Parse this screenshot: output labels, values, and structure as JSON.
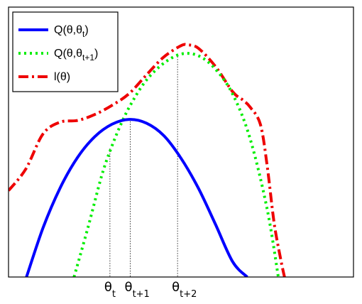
{
  "chart_data": {
    "type": "line",
    "title": "",
    "xlabel": "",
    "ylabel": "",
    "xlim": [
      0,
      1
    ],
    "ylim": [
      0,
      1
    ],
    "grid": false,
    "legend_position": "top-left",
    "series": [
      {
        "name_main": "Q(θ,θ",
        "name_sub": "t",
        "name_tail": ")",
        "color": "#0000ff",
        "style": "solid",
        "x": [
          0.052,
          0.1,
          0.15,
          0.2,
          0.25,
          0.3,
          0.35,
          0.4,
          0.45,
          0.5,
          0.55,
          0.6,
          0.65,
          0.692
        ],
        "y": [
          0.0,
          0.182,
          0.331,
          0.443,
          0.52,
          0.566,
          0.584,
          0.57,
          0.524,
          0.44,
          0.33,
          0.195,
          0.056,
          0.0
        ]
      },
      {
        "name_main": "Q(θ,θ",
        "name_sub": "t+1",
        "name_tail": ")",
        "color": "#00ee00",
        "style": "dotted",
        "x": [
          0.19,
          0.23,
          0.27,
          0.3,
          0.33,
          0.36,
          0.4,
          0.45,
          0.5,
          0.55,
          0.6,
          0.65,
          0.7,
          0.75,
          0.782
        ],
        "y": [
          0.0,
          0.182,
          0.375,
          0.486,
          0.578,
          0.652,
          0.73,
          0.792,
          0.826,
          0.82,
          0.77,
          0.677,
          0.514,
          0.25,
          0.0
        ]
      },
      {
        "name_main": "l(θ)",
        "name_sub": "",
        "name_tail": "",
        "color": "#ee0000",
        "style": "dashdot",
        "x": [
          0.0,
          0.05,
          0.1,
          0.15,
          0.2,
          0.25,
          0.3,
          0.35,
          0.4,
          0.45,
          0.5,
          0.52,
          0.55,
          0.6,
          0.65,
          0.68,
          0.7,
          0.73,
          0.75,
          0.77,
          0.79,
          0.8
        ],
        "y": [
          0.32,
          0.4,
          0.53,
          0.574,
          0.58,
          0.602,
          0.636,
          0.68,
          0.749,
          0.815,
          0.857,
          0.86,
          0.848,
          0.78,
          0.686,
          0.655,
          0.63,
          0.566,
          0.41,
          0.2,
          0.06,
          0.0
        ]
      }
    ],
    "x_ticks": [
      {
        "x": 0.294,
        "main": "θ",
        "sub": "t"
      },
      {
        "x": 0.353,
        "main": "θ",
        "sub": "t+1"
      },
      {
        "x": 0.49,
        "main": "θ",
        "sub": "t+2"
      }
    ],
    "vlines": [
      {
        "x": 0.294,
        "y_top": 0.476
      },
      {
        "x": 0.353,
        "y_top": 0.586
      },
      {
        "x": 0.49,
        "y_top": 0.826
      }
    ]
  }
}
